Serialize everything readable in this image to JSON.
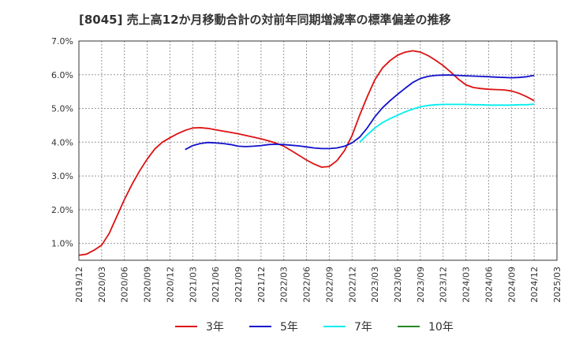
{
  "chart_data": {
    "type": "line",
    "title": "[8045]  売上高12か月移動合計の対前年同期増減率の標準偏差の推移",
    "xlabel": "",
    "ylabel": "",
    "ylim": [
      0.5,
      7.0
    ],
    "y_ticks": [
      {
        "value": 1.0,
        "label": "1.0%"
      },
      {
        "value": 2.0,
        "label": "2.0%"
      },
      {
        "value": 3.0,
        "label": "3.0%"
      },
      {
        "value": 4.0,
        "label": "4.0%"
      },
      {
        "value": 5.0,
        "label": "5.0%"
      },
      {
        "value": 6.0,
        "label": "6.0%"
      },
      {
        "value": 7.0,
        "label": "7.0%"
      }
    ],
    "x_ticks": [
      "2019/12",
      "2020/03",
      "2020/06",
      "2020/09",
      "2020/12",
      "2021/03",
      "2021/06",
      "2021/09",
      "2021/12",
      "2022/03",
      "2022/06",
      "2022/09",
      "2022/12",
      "2023/03",
      "2023/06",
      "2023/09",
      "2023/12",
      "2024/03",
      "2024/06",
      "2024/09",
      "2024/12",
      "2025/03"
    ],
    "grid": true,
    "legend_position": "bottom",
    "series": [
      {
        "name": "3年",
        "color": "#dd1111",
        "points": [
          [
            "2019/12",
            0.65
          ],
          [
            "2020/01",
            0.68
          ],
          [
            "2020/02",
            0.8
          ],
          [
            "2020/03",
            0.95
          ],
          [
            "2020/04",
            1.3
          ],
          [
            "2020/05",
            1.8
          ],
          [
            "2020/06",
            2.3
          ],
          [
            "2020/07",
            2.75
          ],
          [
            "2020/08",
            3.15
          ],
          [
            "2020/09",
            3.5
          ],
          [
            "2020/10",
            3.8
          ],
          [
            "2020/11",
            4.0
          ],
          [
            "2020/12",
            4.13
          ],
          [
            "2021/01",
            4.25
          ],
          [
            "2021/02",
            4.35
          ],
          [
            "2021/03",
            4.42
          ],
          [
            "2021/04",
            4.43
          ],
          [
            "2021/05",
            4.41
          ],
          [
            "2021/06",
            4.37
          ],
          [
            "2021/07",
            4.33
          ],
          [
            "2021/08",
            4.29
          ],
          [
            "2021/09",
            4.25
          ],
          [
            "2021/10",
            4.2
          ],
          [
            "2021/11",
            4.15
          ],
          [
            "2021/12",
            4.1
          ],
          [
            "2022/01",
            4.04
          ],
          [
            "2022/02",
            3.97
          ],
          [
            "2022/03",
            3.88
          ],
          [
            "2022/04",
            3.75
          ],
          [
            "2022/05",
            3.61
          ],
          [
            "2022/06",
            3.47
          ],
          [
            "2022/07",
            3.35
          ],
          [
            "2022/08",
            3.26
          ],
          [
            "2022/09",
            3.28
          ],
          [
            "2022/10",
            3.45
          ],
          [
            "2022/11",
            3.75
          ],
          [
            "2022/12",
            4.2
          ],
          [
            "2023/01",
            4.8
          ],
          [
            "2023/02",
            5.35
          ],
          [
            "2023/03",
            5.85
          ],
          [
            "2023/04",
            6.2
          ],
          [
            "2023/05",
            6.42
          ],
          [
            "2023/06",
            6.58
          ],
          [
            "2023/07",
            6.67
          ],
          [
            "2023/08",
            6.71
          ],
          [
            "2023/09",
            6.67
          ],
          [
            "2023/10",
            6.57
          ],
          [
            "2023/11",
            6.43
          ],
          [
            "2023/12",
            6.27
          ],
          [
            "2024/01",
            6.08
          ],
          [
            "2024/02",
            5.87
          ],
          [
            "2024/03",
            5.7
          ],
          [
            "2024/04",
            5.62
          ],
          [
            "2024/05",
            5.59
          ],
          [
            "2024/06",
            5.57
          ],
          [
            "2024/07",
            5.56
          ],
          [
            "2024/08",
            5.55
          ],
          [
            "2024/09",
            5.52
          ],
          [
            "2024/10",
            5.45
          ],
          [
            "2024/11",
            5.35
          ],
          [
            "2024/12",
            5.23
          ]
        ]
      },
      {
        "name": "5年",
        "color": "#1111cc",
        "points": [
          [
            "2021/02",
            3.78
          ],
          [
            "2021/03",
            3.9
          ],
          [
            "2021/04",
            3.96
          ],
          [
            "2021/05",
            3.99
          ],
          [
            "2021/06",
            3.98
          ],
          [
            "2021/07",
            3.96
          ],
          [
            "2021/08",
            3.93
          ],
          [
            "2021/09",
            3.88
          ],
          [
            "2021/10",
            3.87
          ],
          [
            "2021/11",
            3.88
          ],
          [
            "2021/12",
            3.9
          ],
          [
            "2022/01",
            3.93
          ],
          [
            "2022/02",
            3.94
          ],
          [
            "2022/03",
            3.93
          ],
          [
            "2022/04",
            3.91
          ],
          [
            "2022/05",
            3.89
          ],
          [
            "2022/06",
            3.86
          ],
          [
            "2022/07",
            3.83
          ],
          [
            "2022/08",
            3.81
          ],
          [
            "2022/09",
            3.81
          ],
          [
            "2022/10",
            3.83
          ],
          [
            "2022/11",
            3.88
          ],
          [
            "2022/12",
            3.98
          ],
          [
            "2023/01",
            4.15
          ],
          [
            "2023/02",
            4.42
          ],
          [
            "2023/03",
            4.75
          ],
          [
            "2023/04",
            5.02
          ],
          [
            "2023/05",
            5.23
          ],
          [
            "2023/06",
            5.42
          ],
          [
            "2023/07",
            5.6
          ],
          [
            "2023/08",
            5.77
          ],
          [
            "2023/09",
            5.89
          ],
          [
            "2023/10",
            5.95
          ],
          [
            "2023/11",
            5.98
          ],
          [
            "2023/12",
            5.99
          ],
          [
            "2024/01",
            5.99
          ],
          [
            "2024/02",
            5.98
          ],
          [
            "2024/03",
            5.97
          ],
          [
            "2024/04",
            5.96
          ],
          [
            "2024/05",
            5.95
          ],
          [
            "2024/06",
            5.94
          ],
          [
            "2024/07",
            5.93
          ],
          [
            "2024/08",
            5.92
          ],
          [
            "2024/09",
            5.91
          ],
          [
            "2024/10",
            5.92
          ],
          [
            "2024/11",
            5.94
          ],
          [
            "2024/12",
            5.98
          ]
        ]
      },
      {
        "name": "7年",
        "color": "#00eeee",
        "points": [
          [
            "2023/01",
            4.0
          ],
          [
            "2023/02",
            4.22
          ],
          [
            "2023/03",
            4.42
          ],
          [
            "2023/04",
            4.58
          ],
          [
            "2023/05",
            4.7
          ],
          [
            "2023/06",
            4.8
          ],
          [
            "2023/07",
            4.9
          ],
          [
            "2023/08",
            4.98
          ],
          [
            "2023/09",
            5.05
          ],
          [
            "2023/10",
            5.09
          ],
          [
            "2023/11",
            5.11
          ],
          [
            "2023/12",
            5.12
          ],
          [
            "2024/01",
            5.12
          ],
          [
            "2024/02",
            5.12
          ],
          [
            "2024/03",
            5.12
          ],
          [
            "2024/04",
            5.11
          ],
          [
            "2024/05",
            5.11
          ],
          [
            "2024/06",
            5.1
          ],
          [
            "2024/07",
            5.1
          ],
          [
            "2024/08",
            5.1
          ],
          [
            "2024/09",
            5.1
          ],
          [
            "2024/10",
            5.11
          ],
          [
            "2024/11",
            5.11
          ],
          [
            "2024/12",
            5.13
          ]
        ]
      },
      {
        "name": "10年",
        "color": "#228822",
        "points": []
      }
    ]
  }
}
